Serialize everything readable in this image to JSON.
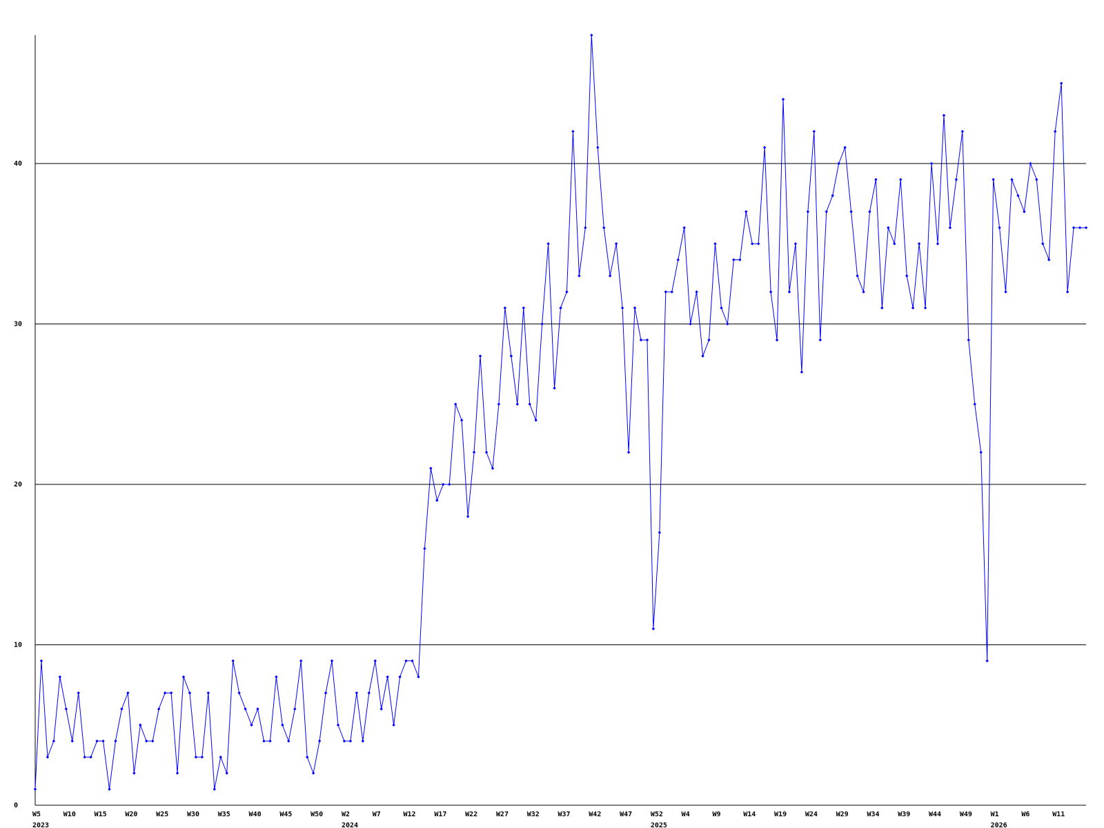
{
  "chart_data": {
    "type": "line",
    "categories": [
      [
        "W5",
        "2023"
      ],
      null,
      null,
      null,
      null,
      "W10",
      null,
      null,
      null,
      null,
      "W15",
      null,
      null,
      null,
      null,
      "W20",
      null,
      null,
      null,
      null,
      "W25",
      null,
      null,
      null,
      null,
      "W30",
      null,
      null,
      null,
      null,
      "W35",
      null,
      null,
      null,
      null,
      "W40",
      null,
      null,
      null,
      null,
      "W45",
      null,
      null,
      null,
      null,
      "W50",
      null,
      null,
      null,
      null,
      [
        "W2",
        "2024"
      ],
      null,
      null,
      null,
      null,
      "W7",
      null,
      null,
      null,
      null,
      "W12",
      null,
      null,
      null,
      null,
      "W17",
      null,
      null,
      null,
      null,
      "W22",
      null,
      null,
      null,
      null,
      "W27",
      null,
      null,
      null,
      null,
      "W32",
      null,
      null,
      null,
      null,
      "W37",
      null,
      null,
      null,
      null,
      "W42",
      null,
      null,
      null,
      null,
      "W47",
      null,
      null,
      null,
      null,
      [
        "W52",
        "2025"
      ],
      null,
      null,
      null,
      null,
      "W4",
      null,
      null,
      null,
      null,
      "W9",
      null,
      null,
      null,
      null,
      "W14",
      null,
      null,
      null,
      null,
      "W19",
      null,
      null,
      null,
      null,
      "W24",
      null,
      null,
      null,
      null,
      "W29",
      null,
      null,
      null,
      null,
      "W34",
      null,
      null,
      null,
      null,
      "W39",
      null,
      null,
      null,
      null,
      "W44",
      null,
      null,
      null,
      null,
      "W49",
      null,
      null,
      null,
      null,
      [
        "W1",
        "2026"
      ],
      null,
      null,
      null,
      null,
      "W6",
      null,
      null,
      null,
      null,
      "W11",
      null,
      null,
      null,
      null,
      null
    ],
    "values": [
      1,
      9,
      3,
      4,
      8,
      6,
      4,
      7,
      3,
      3,
      4,
      4,
      1,
      4,
      6,
      7,
      2,
      5,
      4,
      4,
      6,
      7,
      7,
      2,
      8,
      7,
      3,
      3,
      7,
      1,
      3,
      2,
      9,
      7,
      6,
      5,
      6,
      4,
      4,
      8,
      5,
      4,
      6,
      9,
      3,
      2,
      4,
      7,
      9,
      5,
      4,
      4,
      7,
      4,
      7,
      9,
      6,
      8,
      5,
      8,
      9,
      9,
      8,
      16,
      21,
      19,
      20,
      20,
      25,
      24,
      18,
      22,
      28,
      22,
      21,
      25,
      31,
      28,
      25,
      31,
      25,
      24,
      30,
      35,
      26,
      31,
      32,
      42,
      33,
      36,
      48,
      41,
      36,
      33,
      35,
      31,
      22,
      31,
      29,
      29,
      11,
      17,
      32,
      32,
      34,
      36,
      30,
      32,
      28,
      29,
      35,
      31,
      30,
      34,
      34,
      37,
      35,
      35,
      41,
      32,
      29,
      44,
      32,
      35,
      27,
      37,
      42,
      29,
      37,
      38,
      40,
      41,
      37,
      33,
      32,
      37,
      39,
      31,
      36,
      35,
      39,
      33,
      31,
      35,
      31,
      40,
      35,
      43,
      36,
      39,
      42,
      29,
      25,
      22,
      9,
      39,
      36,
      32,
      39,
      38,
      37,
      40,
      39,
      35,
      34,
      42,
      45,
      32,
      36,
      36,
      36
    ],
    "color": "#0000ff",
    "ylim": [
      0,
      48
    ],
    "yticks": [
      0,
      10,
      20,
      30,
      40
    ],
    "grid": true
  }
}
